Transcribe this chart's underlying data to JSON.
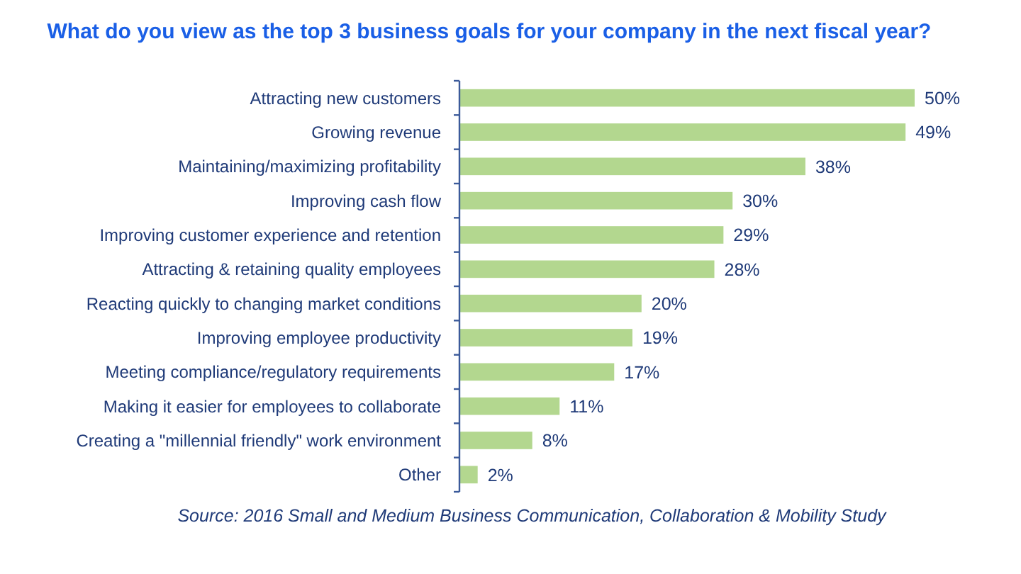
{
  "chart_data": {
    "type": "bar",
    "orientation": "horizontal",
    "title": "What do you view as the top 3 business goals for your company in the next fiscal year?",
    "categories": [
      "Attracting new customers",
      "Growing revenue",
      "Maintaining/maximizing profitability",
      "Improving cash flow",
      "Improving customer experience and retention",
      "Attracting & retaining quality employees",
      "Reacting quickly to changing market conditions",
      "Improving employee productivity",
      "Meeting compliance/regulatory requirements",
      "Making it easier for employees to collaborate",
      "Creating a \"millennial friendly\" work environment",
      "Other"
    ],
    "values": [
      50,
      49,
      38,
      30,
      29,
      28,
      20,
      19,
      17,
      11,
      8,
      2
    ],
    "value_labels": [
      "50%",
      "49%",
      "38%",
      "30%",
      "29%",
      "28%",
      "20%",
      "19%",
      "17%",
      "11%",
      "8%",
      "2%"
    ],
    "color": "#b3d78f",
    "tick_labels": "y",
    "annotations": [
      "Source: 2016 Small and Medium Business Communication, Collaboration & Mobility Study"
    ]
  }
}
